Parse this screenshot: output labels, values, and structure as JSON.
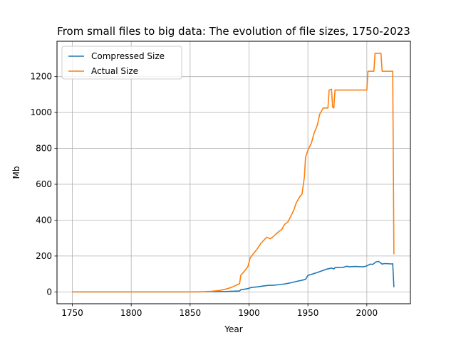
{
  "chart_data": {
    "type": "line",
    "title": "From small files to big data: The evolution of file sizes, 1750-2023",
    "xlabel": "Year",
    "ylabel": "Mb",
    "xlim": [
      1737,
      2037
    ],
    "ylim": [
      -66,
      1397
    ],
    "xticks": [
      1750,
      1800,
      1850,
      1900,
      1950,
      2000
    ],
    "yticks": [
      0,
      200,
      400,
      600,
      800,
      1000,
      1200
    ],
    "grid": true,
    "legend": {
      "position": "top-left"
    },
    "series": [
      {
        "name": "Compressed Size",
        "color": "#1f77b4",
        "points": [
          [
            1750,
            0
          ],
          [
            1850,
            0
          ],
          [
            1870,
            1
          ],
          [
            1880,
            2
          ],
          [
            1892,
            5
          ],
          [
            1893,
            12
          ],
          [
            1898,
            17
          ],
          [
            1900,
            20
          ],
          [
            1902,
            25
          ],
          [
            1907,
            28
          ],
          [
            1912,
            33
          ],
          [
            1917,
            37
          ],
          [
            1920,
            37
          ],
          [
            1925,
            40
          ],
          [
            1930,
            44
          ],
          [
            1935,
            50
          ],
          [
            1940,
            58
          ],
          [
            1945,
            65
          ],
          [
            1948,
            70
          ],
          [
            1950,
            92
          ],
          [
            1955,
            102
          ],
          [
            1960,
            113
          ],
          [
            1965,
            125
          ],
          [
            1968,
            130
          ],
          [
            1970,
            133
          ],
          [
            1972,
            128
          ],
          [
            1973,
            135
          ],
          [
            1975,
            136
          ],
          [
            1980,
            137
          ],
          [
            1983,
            143
          ],
          [
            1985,
            140
          ],
          [
            1990,
            142
          ],
          [
            1995,
            140
          ],
          [
            1998,
            141
          ],
          [
            2000,
            145
          ],
          [
            2003,
            155
          ],
          [
            2005,
            153
          ],
          [
            2008,
            168
          ],
          [
            2010,
            170
          ],
          [
            2012,
            160
          ],
          [
            2013,
            155
          ],
          [
            2015,
            158
          ],
          [
            2018,
            157
          ],
          [
            2021,
            156
          ],
          [
            2022,
            157
          ],
          [
            2023,
            26
          ]
        ]
      },
      {
        "name": "Actual Size",
        "color": "#ff7f0e",
        "points": [
          [
            1750,
            0
          ],
          [
            1860,
            0
          ],
          [
            1868,
            3
          ],
          [
            1875,
            8
          ],
          [
            1880,
            15
          ],
          [
            1885,
            25
          ],
          [
            1890,
            40
          ],
          [
            1892,
            46
          ],
          [
            1893,
            92
          ],
          [
            1896,
            115
          ],
          [
            1899,
            140
          ],
          [
            1901,
            190
          ],
          [
            1904,
            215
          ],
          [
            1907,
            240
          ],
          [
            1910,
            270
          ],
          [
            1915,
            305
          ],
          [
            1918,
            296
          ],
          [
            1920,
            305
          ],
          [
            1925,
            335
          ],
          [
            1928,
            350
          ],
          [
            1930,
            375
          ],
          [
            1933,
            390
          ],
          [
            1935,
            415
          ],
          [
            1938,
            455
          ],
          [
            1940,
            495
          ],
          [
            1943,
            530
          ],
          [
            1945,
            545
          ],
          [
            1947,
            640
          ],
          [
            1948,
            750
          ],
          [
            1950,
            790
          ],
          [
            1953,
            830
          ],
          [
            1955,
            880
          ],
          [
            1958,
            930
          ],
          [
            1960,
            990
          ],
          [
            1963,
            1025
          ],
          [
            1967,
            1025
          ],
          [
            1968,
            1125
          ],
          [
            1970,
            1130
          ],
          [
            1971,
            1030
          ],
          [
            1972,
            1025
          ],
          [
            1973,
            1125
          ],
          [
            1980,
            1125
          ],
          [
            1990,
            1125
          ],
          [
            2000,
            1125
          ],
          [
            2001,
            1230
          ],
          [
            2006,
            1230
          ],
          [
            2007,
            1330
          ],
          [
            2012,
            1330
          ],
          [
            2013,
            1230
          ],
          [
            2018,
            1230
          ],
          [
            2022,
            1230
          ],
          [
            2023,
            210
          ]
        ]
      }
    ]
  }
}
